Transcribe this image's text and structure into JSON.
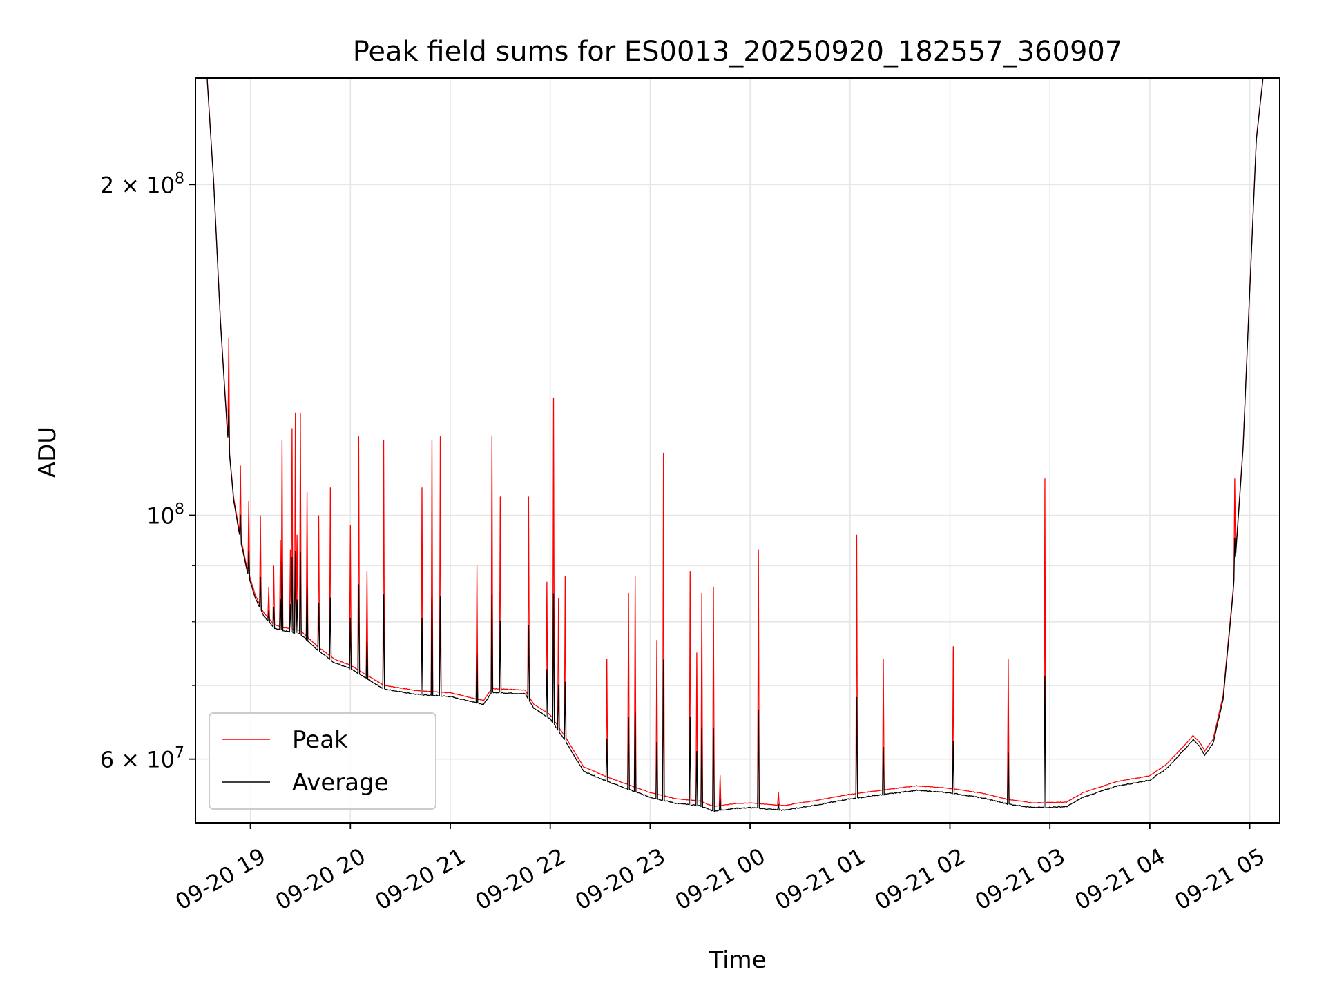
{
  "chart_data": {
    "type": "line",
    "title": "Peak field sums for ES0013_20250920_182557_360907",
    "xlabel": "Time",
    "ylabel": "ADU",
    "yscale": "log",
    "xlim": [
      "2025-09-20 18:27",
      "2025-09-21 05:18"
    ],
    "ylim": [
      52500000,
      250000000
    ],
    "grid": true,
    "legend_location": "lower-left",
    "x_ticks": [
      {
        "t": "2025-09-20 19:00",
        "label": "09-20 19"
      },
      {
        "t": "2025-09-20 20:00",
        "label": "09-20 20"
      },
      {
        "t": "2025-09-20 21:00",
        "label": "09-20 21"
      },
      {
        "t": "2025-09-20 22:00",
        "label": "09-20 22"
      },
      {
        "t": "2025-09-20 23:00",
        "label": "09-20 23"
      },
      {
        "t": "2025-09-21 00:00",
        "label": "09-21 00"
      },
      {
        "t": "2025-09-21 01:00",
        "label": "09-21 01"
      },
      {
        "t": "2025-09-21 02:00",
        "label": "09-21 02"
      },
      {
        "t": "2025-09-21 03:00",
        "label": "09-21 03"
      },
      {
        "t": "2025-09-21 04:00",
        "label": "09-21 04"
      },
      {
        "t": "2025-09-21 05:00",
        "label": "09-21 05"
      }
    ],
    "y_major_ticks": [
      {
        "value": 60000000,
        "mantissa": "6",
        "exponent": "7"
      },
      {
        "value": 100000000,
        "mantissa": "",
        "exponent": "8"
      },
      {
        "value": 200000000,
        "mantissa": "2",
        "exponent": "8"
      }
    ],
    "y_minor_ticks": [
      70000000,
      80000000,
      90000000
    ],
    "series": [
      {
        "name": "Average",
        "color": "#000000",
        "points": [
          [
            "2025-09-20 18:34",
            250000000
          ],
          [
            "2025-09-20 18:38",
            200000000
          ],
          [
            "2025-09-20 18:42",
            150000000
          ],
          [
            "2025-09-20 18:46",
            120000000
          ],
          [
            "2025-09-20 18:50",
            103000000
          ],
          [
            "2025-09-20 18:54",
            95000000
          ],
          [
            "2025-09-20 18:58",
            89000000
          ],
          [
            "2025-09-20 19:03",
            84000000
          ],
          [
            "2025-09-20 19:08",
            81000000
          ],
          [
            "2025-09-20 19:14",
            79000000
          ],
          [
            "2025-09-20 19:20",
            78500000
          ],
          [
            "2025-09-20 19:30",
            78000000
          ],
          [
            "2025-09-20 19:40",
            75500000
          ],
          [
            "2025-09-20 19:50",
            73500000
          ],
          [
            "2025-09-20 20:00",
            72500000
          ],
          [
            "2025-09-20 20:10",
            71000000
          ],
          [
            "2025-09-20 20:20",
            69500000
          ],
          [
            "2025-09-20 20:40",
            68700000
          ],
          [
            "2025-09-20 21:00",
            68400000
          ],
          [
            "2025-09-20 21:20",
            67300000
          ],
          [
            "2025-09-20 21:25",
            69000000
          ],
          [
            "2025-09-20 21:45",
            68800000
          ],
          [
            "2025-09-20 21:50",
            66800000
          ],
          [
            "2025-09-20 22:00",
            65300000
          ],
          [
            "2025-09-20 22:10",
            62000000
          ],
          [
            "2025-09-20 22:20",
            58500000
          ],
          [
            "2025-09-20 22:35",
            57200000
          ],
          [
            "2025-09-20 22:50",
            56100000
          ],
          [
            "2025-09-20 23:00",
            55400000
          ],
          [
            "2025-09-20 23:15",
            54700000
          ],
          [
            "2025-09-20 23:30",
            54400000
          ],
          [
            "2025-09-20 23:38",
            53800000
          ],
          [
            "2025-09-20 23:50",
            54100000
          ],
          [
            "2025-09-21 00:00",
            54200000
          ],
          [
            "2025-09-21 00:20",
            53900000
          ],
          [
            "2025-09-21 00:40",
            54500000
          ],
          [
            "2025-09-21 01:00",
            55200000
          ],
          [
            "2025-09-21 01:20",
            55700000
          ],
          [
            "2025-09-21 01:40",
            56200000
          ],
          [
            "2025-09-21 02:00",
            55900000
          ],
          [
            "2025-09-21 02:20",
            55300000
          ],
          [
            "2025-09-21 02:35",
            54600000
          ],
          [
            "2025-09-21 02:50",
            54200000
          ],
          [
            "2025-09-21 03:10",
            54300000
          ],
          [
            "2025-09-21 03:20",
            55400000
          ],
          [
            "2025-09-21 03:40",
            56700000
          ],
          [
            "2025-09-21 04:00",
            57400000
          ],
          [
            "2025-09-21 04:10",
            58800000
          ],
          [
            "2025-09-21 04:22",
            61500000
          ],
          [
            "2025-09-21 04:26",
            62500000
          ],
          [
            "2025-09-21 04:30",
            61600000
          ],
          [
            "2025-09-21 04:33",
            60500000
          ],
          [
            "2025-09-21 04:38",
            62000000
          ],
          [
            "2025-09-21 04:44",
            68000000
          ],
          [
            "2025-09-21 04:50",
            85000000
          ],
          [
            "2025-09-21 04:56",
            115000000
          ],
          [
            "2025-09-21 05:00",
            160000000
          ],
          [
            "2025-09-21 05:04",
            220000000
          ],
          [
            "2025-09-21 05:08",
            250000000
          ]
        ]
      },
      {
        "name": "Peak",
        "color": "#ff0000",
        "baseline_offset": 500000,
        "spikes": [
          [
            "2025-09-20 18:47",
            145000000
          ],
          [
            "2025-09-20 18:54",
            111000000
          ],
          [
            "2025-09-20 18:59",
            103000000
          ],
          [
            "2025-09-20 19:06",
            100000000
          ],
          [
            "2025-09-20 19:11",
            86000000
          ],
          [
            "2025-09-20 19:14",
            90000000
          ],
          [
            "2025-09-20 19:18",
            95000000
          ],
          [
            "2025-09-20 19:19",
            117000000
          ],
          [
            "2025-09-20 19:24",
            93000000
          ],
          [
            "2025-09-20 19:25",
            120000000
          ],
          [
            "2025-09-20 19:27",
            124000000
          ],
          [
            "2025-09-20 19:28",
            96000000
          ],
          [
            "2025-09-20 19:30",
            124000000
          ],
          [
            "2025-09-20 19:34",
            105000000
          ],
          [
            "2025-09-20 19:41",
            100000000
          ],
          [
            "2025-09-20 19:48",
            106000000
          ],
          [
            "2025-09-20 20:00",
            98000000
          ],
          [
            "2025-09-20 20:05",
            118000000
          ],
          [
            "2025-09-20 20:10",
            89000000
          ],
          [
            "2025-09-20 20:20",
            117000000
          ],
          [
            "2025-09-20 20:43",
            106000000
          ],
          [
            "2025-09-20 20:49",
            117000000
          ],
          [
            "2025-09-20 20:54",
            118000000
          ],
          [
            "2025-09-20 21:16",
            90000000
          ],
          [
            "2025-09-20 21:25",
            118000000
          ],
          [
            "2025-09-20 21:30",
            104000000
          ],
          [
            "2025-09-20 21:47",
            104000000
          ],
          [
            "2025-09-20 21:58",
            87000000
          ],
          [
            "2025-09-20 22:02",
            128000000
          ],
          [
            "2025-09-20 22:05",
            84000000
          ],
          [
            "2025-09-20 22:09",
            88000000
          ],
          [
            "2025-09-20 22:34",
            74000000
          ],
          [
            "2025-09-20 22:47",
            85000000
          ],
          [
            "2025-09-20 22:51",
            88000000
          ],
          [
            "2025-09-20 23:04",
            77000000
          ],
          [
            "2025-09-20 23:08",
            114000000
          ],
          [
            "2025-09-20 23:24",
            89000000
          ],
          [
            "2025-09-20 23:28",
            75000000
          ],
          [
            "2025-09-20 23:31",
            85000000
          ],
          [
            "2025-09-20 23:38",
            86000000
          ],
          [
            "2025-09-20 23:42",
            58000000
          ],
          [
            "2025-09-21 00:05",
            93000000
          ],
          [
            "2025-09-21 00:17",
            56000000
          ],
          [
            "2025-09-21 01:04",
            96000000
          ],
          [
            "2025-09-21 01:20",
            74000000
          ],
          [
            "2025-09-21 02:02",
            76000000
          ],
          [
            "2025-09-21 02:35",
            74000000
          ],
          [
            "2025-09-21 02:57",
            108000000
          ],
          [
            "2025-09-21 04:51",
            108000000
          ]
        ]
      }
    ]
  }
}
